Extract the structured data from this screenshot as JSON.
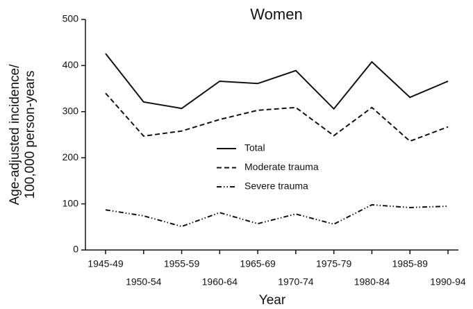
{
  "chart_data": {
    "type": "line",
    "title": "Women",
    "xlabel": "Year",
    "ylabel": [
      "Age-adjusted incidence/",
      "100,000 person-years"
    ],
    "categories": [
      "1945-49",
      "1950-54",
      "1955-59",
      "1960-64",
      "1965-69",
      "1970-74",
      "1975-79",
      "1980-84",
      "1985-89",
      "1990-94"
    ],
    "series": [
      {
        "name": "Total",
        "color": "#111111",
        "dash": "solid",
        "values": [
          426,
          321,
          307,
          366,
          361,
          389,
          306,
          408,
          331,
          366
        ]
      },
      {
        "name": "Moderate trauma",
        "color": "#111111",
        "dash": "dashed",
        "values": [
          340,
          247,
          258,
          283,
          303,
          309,
          248,
          309,
          236,
          267
        ]
      },
      {
        "name": "Severe trauma",
        "color": "#111111",
        "dash": "dash-dot-dot",
        "values": [
          87,
          74,
          51,
          81,
          57,
          78,
          56,
          98,
          92,
          95
        ]
      }
    ],
    "ylim": [
      0,
      500
    ],
    "yticks": [
      0,
      100,
      200,
      300,
      400,
      500
    ],
    "grid": false
  }
}
